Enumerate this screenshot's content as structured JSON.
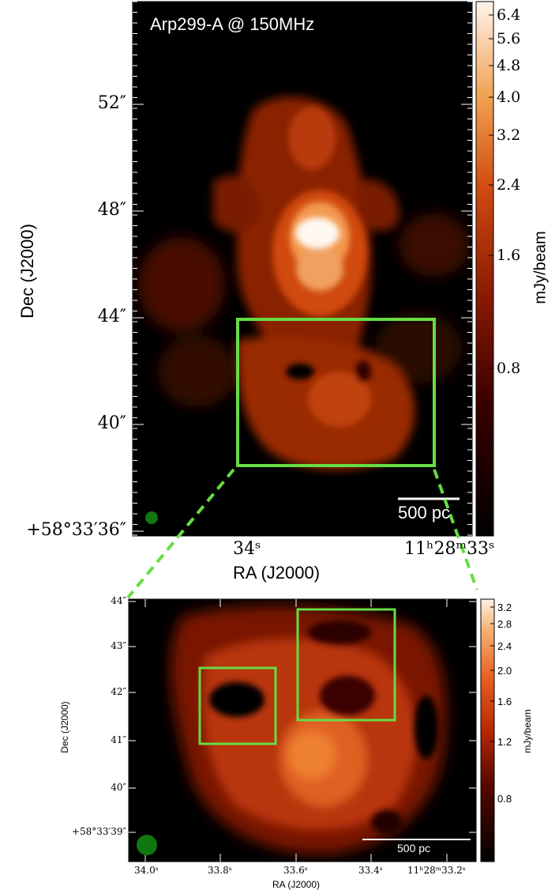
{
  "top_panel": {
    "title": "Arp299-A @ 150MHz",
    "scalebar_label": "500 pc",
    "ylabel": "Dec (J2000)",
    "xlabel": "RA (J2000)",
    "y_ticks": [
      "52″",
      "48″",
      "44″",
      "40″",
      "+58°33′36″"
    ],
    "x_ticks": [
      "34ˢ",
      "11ʰ28ᵐ33ˢ"
    ],
    "colorbar": {
      "label": "mJy/beam",
      "ticks": [
        "6.4",
        "5.6",
        "4.8",
        "4.0",
        "3.2",
        "2.4",
        "1.6",
        "0.8"
      ]
    }
  },
  "bottom_panel": {
    "scalebar_label": "500 pc",
    "ylabel": "Dec (J2000)",
    "xlabel": "RA (J2000)",
    "y_ticks": [
      "44″",
      "43″",
      "42″",
      "41″",
      "40″",
      "+58°33′39″"
    ],
    "x_ticks": [
      "34.0ˢ",
      "33.8ˢ",
      "33.6ˢ",
      "33.4ˢ",
      "11ʰ28ᵐ33.2ˢ"
    ],
    "colorbar": {
      "label": "mJy/beam",
      "ticks": [
        "3.2",
        "2.8",
        "2.4",
        "2.0",
        "1.6",
        "1.2",
        "0.8"
      ]
    }
  },
  "colors": {
    "highlight_box": "#66dd44",
    "beam": "#117711",
    "background": "#000000"
  }
}
